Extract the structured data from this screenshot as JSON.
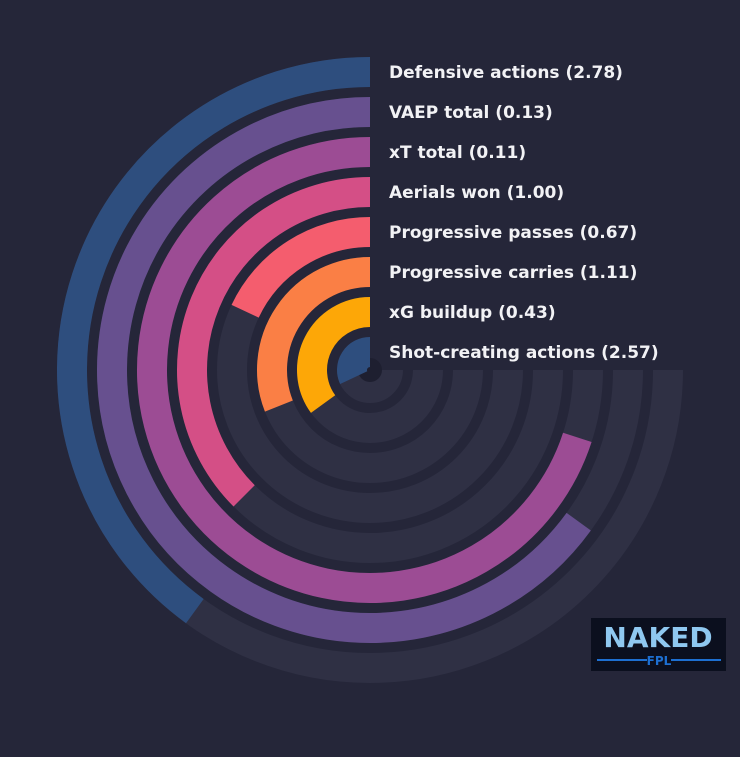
{
  "chart_data": {
    "type": "radial-bar",
    "title": "",
    "series": [
      {
        "name": "Defensive actions",
        "label": "Defensive actions (2.78)",
        "value": 2.78,
        "fraction": 0.4,
        "color": "#2e4e7e"
      },
      {
        "name": "VAEP total",
        "label": "VAEP total (0.13)",
        "value": 0.13,
        "fraction": 0.65,
        "color": "#67508f"
      },
      {
        "name": "xT total",
        "label": "xT total (0.11)",
        "value": 0.11,
        "fraction": 0.7,
        "color": "#9c4c94"
      },
      {
        "name": "Aerials won",
        "label": "Aerials won (1.00)",
        "value": 1.0,
        "fraction": 0.375,
        "color": "#d44f86"
      },
      {
        "name": "Progressive passes",
        "label": "Progressive passes (0.67)",
        "value": 0.67,
        "fraction": 0.18,
        "color": "#f45d6e"
      },
      {
        "name": "Progressive carries",
        "label": "Progressive carries (1.11)",
        "value": 1.11,
        "fraction": 0.31,
        "color": "#fa7f45"
      },
      {
        "name": "xG buildup",
        "label": "xG buildup (0.43)",
        "value": 0.43,
        "fraction": 0.35,
        "color": "#fda707"
      },
      {
        "name": "Shot-creating actions",
        "label": "Shot-creating actions (2.57)",
        "value": 2.57,
        "fraction": 0.32,
        "color": "#2e4e7e"
      }
    ],
    "track_color": "#2f3044",
    "background_color": "#252639",
    "label_color": "#f2f2f5",
    "grid": false,
    "legend": "none"
  },
  "logo": {
    "text_main": "NAKED",
    "text_sub": "FPL",
    "color": "#8fc8f0",
    "accent": "#1d6fd1"
  }
}
